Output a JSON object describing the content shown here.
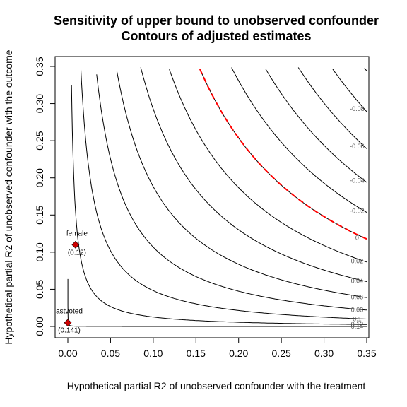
{
  "chart_data": {
    "type": "contour",
    "title_line1": "Sensitivity of upper bound to unobserved confounder",
    "title_line2": "Contours of adjusted estimates",
    "xlabel": "Hypothetical partial R2 of unobserved confounder with the treatment",
    "ylabel": "Hypothetical partial R2 of unobserved confounder with the outcome",
    "xlim": [
      0,
      0.35
    ],
    "ylim": [
      0,
      0.35
    ],
    "xticks": [
      "0.00",
      "0.05",
      "0.10",
      "0.15",
      "0.20",
      "0.25",
      "0.30",
      "0.35"
    ],
    "yticks": [
      "0.00",
      "0.05",
      "0.10",
      "0.15",
      "0.20",
      "0.25",
      "0.30",
      "0.35"
    ],
    "unadjusted_estimate": 0.141,
    "contour_levels": [
      0.14,
      0.12,
      0.1,
      0.08,
      0.06,
      0.04,
      0.02,
      0,
      -0.02,
      -0.04,
      -0.06,
      -0.08,
      -0.1,
      -0.12
    ],
    "contour_labels": [
      "0.14",
      "0.12",
      "0.1",
      "0.08",
      "0.06",
      "0.04",
      "0.02",
      "0",
      "-0.02",
      "-0.04",
      "-0.06",
      "-0.08",
      "-0.1",
      "-0.12"
    ],
    "threshold_level": 0,
    "threshold_color": "#ff0000",
    "points": [
      {
        "label": "astvoted",
        "value": "(0.141)",
        "x": 0.0,
        "y": 0.005
      },
      {
        "label": "female",
        "value": "(0.12)",
        "x": 0.009,
        "y": 0.11
      }
    ],
    "point_color": "#cc0000",
    "grid": false
  }
}
